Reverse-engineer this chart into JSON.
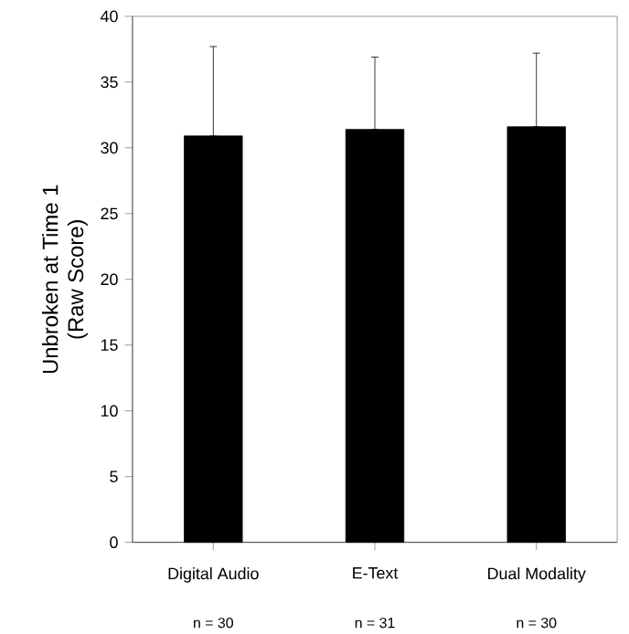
{
  "chart_data": {
    "type": "bar",
    "ylabel": "Unbroken at Time 1\n(Raw Score)",
    "categories": [
      "Digital Audio",
      "E-Text",
      "Dual Modality"
    ],
    "values": [
      30.9,
      31.4,
      31.6
    ],
    "color": "#000000",
    "errors": [
      [
        30.9,
        37.7
      ],
      [
        31.4,
        36.9
      ],
      [
        31.6,
        37.2
      ]
    ],
    "ylim": [
      0,
      40
    ],
    "yticks": [
      0,
      5,
      10,
      15,
      20,
      25,
      30,
      35,
      40
    ],
    "grid": false,
    "annotations": [
      "n = 30",
      "n = 31",
      "n = 30"
    ]
  }
}
